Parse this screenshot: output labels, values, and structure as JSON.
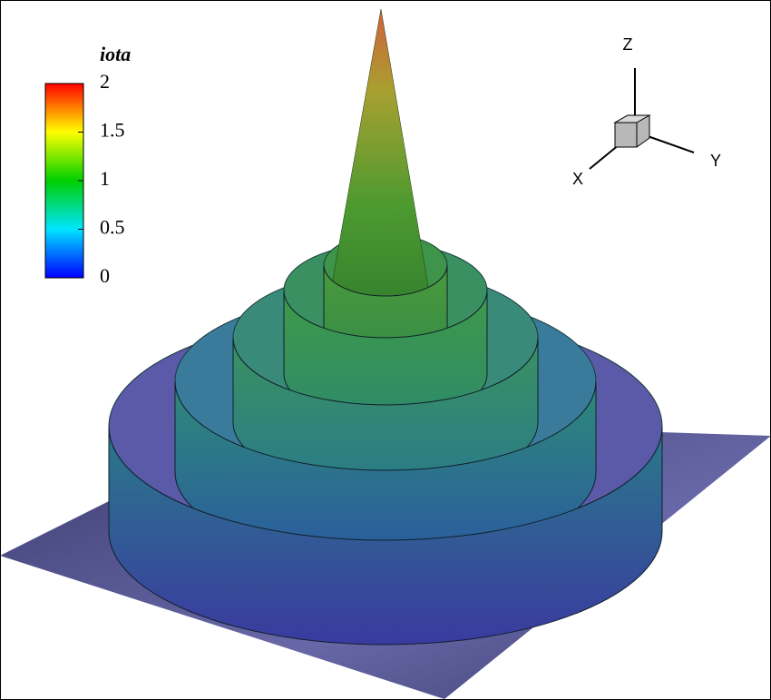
{
  "chart_data": {
    "type": "surface",
    "colorbar": {
      "title": "iota",
      "lim": [
        0,
        2
      ],
      "ticks": [
        0,
        0.5,
        1,
        1.5,
        2
      ],
      "colormap": [
        "#0000ff",
        "#00e5ff",
        "#00d000",
        "#ffff00",
        "#ff0000"
      ]
    },
    "axes": {
      "x": "X",
      "y": "Y",
      "z": "Z"
    }
  }
}
